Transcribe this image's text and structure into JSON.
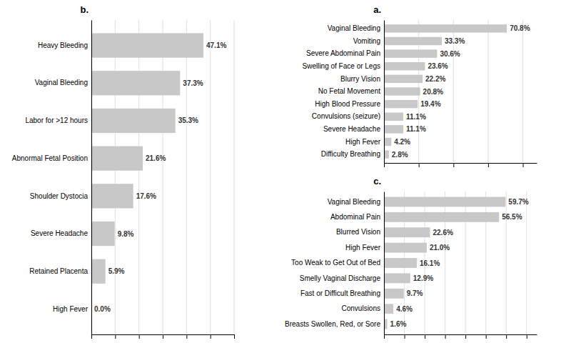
{
  "chart_data": [
    {
      "type": "bar",
      "title": "a.",
      "orientation": "horizontal",
      "categories": [
        "Vaginal Bleeding",
        "Vomiting",
        "Severe Abdominal Pain",
        "Swelling of Face or Legs",
        "Blurry Vision",
        "No Fetal Movement",
        "High Blood Pressure",
        "Convulsions (seizure)",
        "Severe Headache",
        "High Fever",
        "Difficulty Breathing"
      ],
      "values": [
        70.8,
        33.3,
        30.6,
        23.6,
        22.2,
        20.8,
        19.4,
        11.1,
        11.1,
        4.2,
        2.8
      ],
      "value_labels": [
        "70.8%",
        "33.3%",
        "30.6%",
        "23.6%",
        "22.2%",
        "20.8%",
        "19.4%",
        "11.1%",
        "11.1%",
        "4.2%",
        "2.8%"
      ],
      "color": "#c8c8c8",
      "xlim": [
        0,
        88
      ],
      "xticks": [
        0,
        20,
        40,
        60,
        80
      ],
      "grid": true,
      "data_labels": true,
      "tick_labels": "y"
    },
    {
      "type": "bar",
      "title": "b.",
      "orientation": "horizontal",
      "categories": [
        "Heavy Bleeding",
        "Vaginal Bleeding",
        "Labor for >12 hours",
        "Abnormal Fetal Position",
        "Shoulder Dystocia",
        "Severe Headache",
        "Retained Placenta",
        "High Fever"
      ],
      "values": [
        47.1,
        37.3,
        35.3,
        21.6,
        17.6,
        9.8,
        5.9,
        0.0
      ],
      "value_labels": [
        "47.1%",
        "37.3%",
        "35.3%",
        "21.6%",
        "17.6%",
        "9.8%",
        "5.9%",
        "0.0%"
      ],
      "color": "#c8c8c8",
      "xlim": [
        0,
        60
      ],
      "xticks": [
        0,
        10,
        20,
        30,
        40,
        50,
        60
      ],
      "grid": true,
      "data_labels": true,
      "tick_labels": "y"
    },
    {
      "type": "bar",
      "title": "c.",
      "orientation": "horizontal",
      "categories": [
        "Vaginal Bleeding",
        "Abdominal Pain",
        "Blurred Vision",
        "High Fever",
        "Too Weak to Get Out of Bed",
        "Smelly Vaginal Discharge",
        "Fast or Difficult Breathing",
        "Convulsions",
        "Breasts Swollen, Red, or Sore"
      ],
      "values": [
        59.7,
        56.5,
        22.6,
        21.0,
        16.1,
        12.9,
        9.7,
        4.6,
        1.6
      ],
      "value_labels": [
        "59.7%",
        "56.5%",
        "22.6%",
        "21.0%",
        "16.1%",
        "12.9%",
        "9.7%",
        "4.6%",
        "1.6%"
      ],
      "color": "#c8c8c8",
      "xlim": [
        0,
        75
      ],
      "xticks": [
        0,
        10,
        20,
        30,
        40,
        50,
        60,
        70
      ],
      "grid": true,
      "data_labels": true,
      "tick_labels": "y"
    }
  ]
}
